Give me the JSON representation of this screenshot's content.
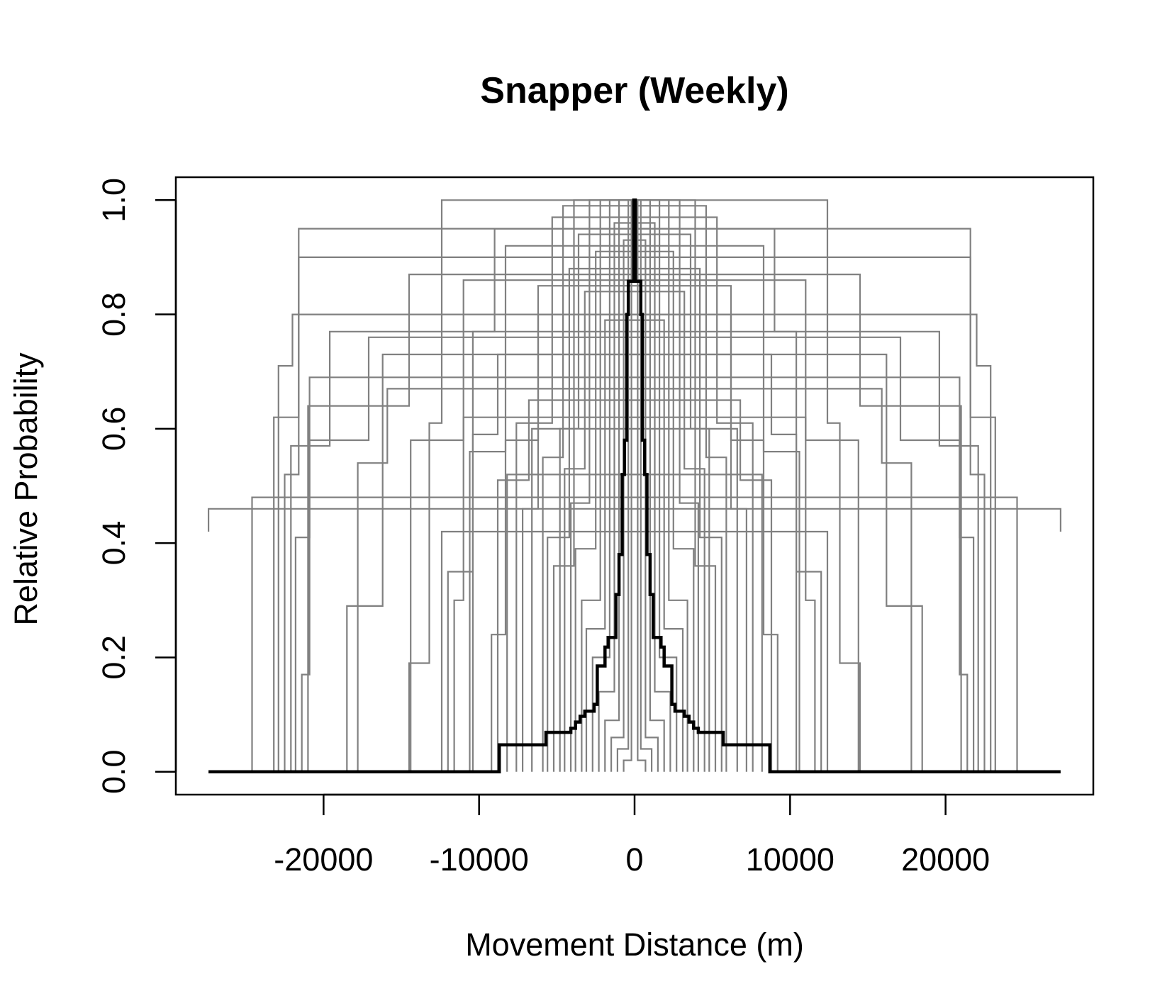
{
  "chart_data": {
    "type": "line",
    "title": "Snapper (Weekly)",
    "xlabel": "Movement Distance (m)",
    "ylabel": "Relative Probability",
    "xlim": [
      -29500,
      29500
    ],
    "ylim": [
      -0.04,
      1.04
    ],
    "x_ticks": [
      -20000,
      -10000,
      0,
      10000,
      20000
    ],
    "x_tick_labels": [
      "-20000",
      "-10000",
      "0",
      "10000",
      "20000"
    ],
    "y_ticks": [
      0.0,
      0.2,
      0.4,
      0.6,
      0.8,
      1.0
    ],
    "y_tick_labels": [
      "0.0",
      "0.2",
      "0.4",
      "0.6",
      "0.8",
      "1.0"
    ],
    "grid": false,
    "legend": "none",
    "colors": {
      "individual": "#808080",
      "mean": "#000000"
    },
    "individual_curves": [
      {
        "half_width": 27400,
        "peak": 0.46,
        "steps": [
          [
            27400,
            0.42
          ],
          [
            27400,
            0.46
          ]
        ]
      },
      {
        "half_width": 24600,
        "peak": 0.48,
        "steps": [
          [
            24600,
            0.0
          ],
          [
            24600,
            0.48
          ]
        ]
      },
      {
        "half_width": 23200,
        "peak": 0.95,
        "steps": [
          [
            23200,
            0.0
          ],
          [
            23200,
            0.62
          ],
          [
            21600,
            0.95
          ]
        ]
      },
      {
        "half_width": 22900,
        "peak": 0.8,
        "steps": [
          [
            22900,
            0.0
          ],
          [
            22900,
            0.71
          ],
          [
            22000,
            0.8
          ]
        ]
      },
      {
        "half_width": 22500,
        "peak": 0.9,
        "steps": [
          [
            22500,
            0.0
          ],
          [
            22500,
            0.52
          ],
          [
            21600,
            0.9
          ]
        ]
      },
      {
        "half_width": 22100,
        "peak": 0.77,
        "steps": [
          [
            22100,
            0.0
          ],
          [
            22100,
            0.57
          ],
          [
            19600,
            0.77
          ]
        ]
      },
      {
        "half_width": 21800,
        "peak": 0.69,
        "steps": [
          [
            21800,
            0.0
          ],
          [
            21800,
            0.41
          ],
          [
            20900,
            0.69
          ]
        ]
      },
      {
        "half_width": 21400,
        "peak": 0.76,
        "steps": [
          [
            21400,
            0.0
          ],
          [
            21400,
            0.17
          ],
          [
            20900,
            0.58
          ],
          [
            17100,
            0.76
          ]
        ]
      },
      {
        "half_width": 21000,
        "peak": 0.87,
        "steps": [
          [
            21000,
            0.0
          ],
          [
            21000,
            0.64
          ],
          [
            14500,
            0.87
          ]
        ]
      },
      {
        "half_width": 18500,
        "peak": 0.73,
        "steps": [
          [
            18500,
            0.0
          ],
          [
            18500,
            0.29
          ],
          [
            16200,
            0.73
          ]
        ]
      },
      {
        "half_width": 17800,
        "peak": 0.67,
        "steps": [
          [
            17800,
            0.0
          ],
          [
            17800,
            0.54
          ],
          [
            15900,
            0.67
          ]
        ]
      },
      {
        "half_width": 14500,
        "peak": 1.0,
        "steps": [
          [
            14500,
            0.0
          ],
          [
            14500,
            0.19
          ],
          [
            13200,
            0.61
          ],
          [
            12400,
            1.0
          ]
        ]
      },
      {
        "half_width": 14400,
        "peak": 0.86,
        "steps": [
          [
            14400,
            0.0
          ],
          [
            14400,
            0.58
          ],
          [
            11000,
            0.86
          ]
        ]
      },
      {
        "half_width": 12400,
        "peak": 0.42,
        "steps": [
          [
            12400,
            0.0
          ],
          [
            12400,
            0.42
          ]
        ]
      },
      {
        "half_width": 12000,
        "peak": 0.95,
        "steps": [
          [
            12000,
            0.0
          ],
          [
            12000,
            0.35
          ],
          [
            10400,
            0.77
          ],
          [
            9000,
            0.95
          ]
        ]
      },
      {
        "half_width": 11600,
        "peak": 0.62,
        "steps": [
          [
            11600,
            0.0
          ],
          [
            11600,
            0.3
          ],
          [
            11000,
            0.62
          ]
        ]
      },
      {
        "half_width": 10600,
        "peak": 0.92,
        "steps": [
          [
            10600,
            0.0
          ],
          [
            10600,
            0.56
          ],
          [
            8300,
            0.92
          ]
        ]
      },
      {
        "half_width": 10400,
        "peak": 0.73,
        "steps": [
          [
            10400,
            0.0
          ],
          [
            10400,
            0.59
          ],
          [
            8800,
            0.73
          ]
        ]
      },
      {
        "half_width": 9200,
        "peak": 0.85,
        "steps": [
          [
            9200,
            0.0
          ],
          [
            9200,
            0.24
          ],
          [
            8300,
            0.58
          ],
          [
            6200,
            0.85
          ]
        ]
      },
      {
        "half_width": 8800,
        "peak": 0.65,
        "steps": [
          [
            8800,
            0.0
          ],
          [
            8800,
            0.51
          ],
          [
            6800,
            0.65
          ]
        ]
      },
      {
        "half_width": 8200,
        "peak": 0.52,
        "steps": [
          [
            8200,
            0.0
          ],
          [
            8200,
            0.52
          ]
        ]
      },
      {
        "half_width": 7600,
        "peak": 0.97,
        "steps": [
          [
            7600,
            0.0
          ],
          [
            7600,
            0.61
          ],
          [
            5300,
            0.97
          ]
        ]
      },
      {
        "half_width": 7200,
        "peak": 0.8,
        "steps": [
          [
            7200,
            0.0
          ],
          [
            7200,
            0.46
          ],
          [
            6200,
            0.8
          ]
        ]
      },
      {
        "half_width": 6600,
        "peak": 0.6,
        "steps": [
          [
            6600,
            0.0
          ],
          [
            6600,
            0.6
          ]
        ]
      },
      {
        "half_width": 5900,
        "peak": 0.99,
        "steps": [
          [
            5900,
            0.0
          ],
          [
            5900,
            0.55
          ],
          [
            4600,
            0.99
          ]
        ]
      },
      {
        "half_width": 5600,
        "peak": 0.88,
        "steps": [
          [
            5600,
            0.0
          ],
          [
            5600,
            0.41
          ],
          [
            4200,
            0.88
          ]
        ]
      },
      {
        "half_width": 5200,
        "peak": 1.0,
        "steps": [
          [
            5200,
            0.0
          ],
          [
            5200,
            0.36
          ],
          [
            3900,
            1.0
          ]
        ]
      },
      {
        "half_width": 4800,
        "peak": 0.94,
        "steps": [
          [
            4800,
            0.0
          ],
          [
            4800,
            0.6
          ],
          [
            3600,
            0.94
          ]
        ]
      },
      {
        "half_width": 4500,
        "peak": 0.84,
        "steps": [
          [
            4500,
            0.0
          ],
          [
            4500,
            0.53
          ],
          [
            3200,
            0.84
          ]
        ]
      },
      {
        "half_width": 4100,
        "peak": 1.0,
        "steps": [
          [
            4100,
            0.0
          ],
          [
            4100,
            0.47
          ],
          [
            2900,
            1.0
          ]
        ]
      },
      {
        "half_width": 3800,
        "peak": 0.91,
        "steps": [
          [
            3800,
            0.0
          ],
          [
            3800,
            0.39
          ],
          [
            2500,
            0.91
          ]
        ]
      },
      {
        "half_width": 3400,
        "peak": 1.0,
        "steps": [
          [
            3400,
            0.0
          ],
          [
            3400,
            0.3
          ],
          [
            2200,
            1.0
          ]
        ]
      },
      {
        "half_width": 3100,
        "peak": 0.79,
        "steps": [
          [
            3100,
            0.0
          ],
          [
            3100,
            0.25
          ],
          [
            1900,
            0.79
          ]
        ]
      },
      {
        "half_width": 2700,
        "peak": 1.0,
        "steps": [
          [
            2700,
            0.0
          ],
          [
            2700,
            0.2
          ],
          [
            1600,
            1.0
          ]
        ]
      },
      {
        "half_width": 2300,
        "peak": 0.96,
        "steps": [
          [
            2300,
            0.0
          ],
          [
            2300,
            0.14
          ],
          [
            1300,
            0.96
          ]
        ]
      },
      {
        "half_width": 1900,
        "peak": 1.0,
        "steps": [
          [
            1900,
            0.0
          ],
          [
            1900,
            0.09
          ],
          [
            1000,
            1.0
          ]
        ]
      },
      {
        "half_width": 1500,
        "peak": 0.93,
        "steps": [
          [
            1500,
            0.0
          ],
          [
            1500,
            0.06
          ],
          [
            700,
            0.93
          ]
        ]
      },
      {
        "half_width": 1100,
        "peak": 1.0,
        "steps": [
          [
            1100,
            0.0
          ],
          [
            1100,
            0.04
          ],
          [
            400,
            1.0
          ]
        ]
      },
      {
        "half_width": 700,
        "peak": 1.0,
        "steps": [
          [
            700,
            0.0
          ],
          [
            700,
            0.02
          ],
          [
            200,
            1.0
          ]
        ]
      }
    ],
    "series": [
      {
        "values": [
          [
            -27400,
            0.0
          ],
          [
            -8700,
            0.0
          ],
          [
            -8700,
            0.047
          ],
          [
            -5700,
            0.047
          ],
          [
            -5700,
            0.069
          ],
          [
            -4100,
            0.069
          ],
          [
            -4100,
            0.076
          ],
          [
            -3800,
            0.076
          ],
          [
            -3800,
            0.087
          ],
          [
            -3500,
            0.087
          ],
          [
            -3500,
            0.097
          ],
          [
            -3200,
            0.097
          ],
          [
            -3200,
            0.106
          ],
          [
            -2600,
            0.106
          ],
          [
            -2600,
            0.118
          ],
          [
            -2400,
            0.118
          ],
          [
            -2400,
            0.185
          ],
          [
            -1900,
            0.185
          ],
          [
            -1900,
            0.218
          ],
          [
            -1700,
            0.218
          ],
          [
            -1700,
            0.235
          ],
          [
            -1200,
            0.235
          ],
          [
            -1200,
            0.31
          ],
          [
            -1000,
            0.31
          ],
          [
            -1000,
            0.38
          ],
          [
            -800,
            0.38
          ],
          [
            -800,
            0.52
          ],
          [
            -650,
            0.52
          ],
          [
            -650,
            0.58
          ],
          [
            -500,
            0.58
          ],
          [
            -500,
            0.8
          ],
          [
            -400,
            0.8
          ],
          [
            -400,
            0.858
          ],
          [
            -50,
            0.858
          ],
          [
            -50,
            1.0
          ],
          [
            50,
            1.0
          ],
          [
            50,
            0.858
          ],
          [
            400,
            0.858
          ],
          [
            400,
            0.8
          ],
          [
            500,
            0.8
          ],
          [
            500,
            0.58
          ],
          [
            650,
            0.58
          ],
          [
            650,
            0.52
          ],
          [
            800,
            0.52
          ],
          [
            800,
            0.38
          ],
          [
            1000,
            0.38
          ],
          [
            1000,
            0.31
          ],
          [
            1200,
            0.31
          ],
          [
            1200,
            0.235
          ],
          [
            1700,
            0.235
          ],
          [
            1700,
            0.218
          ],
          [
            1900,
            0.218
          ],
          [
            1900,
            0.185
          ],
          [
            2400,
            0.185
          ],
          [
            2400,
            0.118
          ],
          [
            2600,
            0.118
          ],
          [
            2600,
            0.106
          ],
          [
            3200,
            0.106
          ],
          [
            3200,
            0.097
          ],
          [
            3500,
            0.097
          ],
          [
            3500,
            0.087
          ],
          [
            3800,
            0.087
          ],
          [
            3800,
            0.076
          ],
          [
            4100,
            0.076
          ],
          [
            4100,
            0.069
          ],
          [
            5700,
            0.069
          ],
          [
            5700,
            0.047
          ],
          [
            8700,
            0.047
          ],
          [
            8700,
            0.0
          ],
          [
            27400,
            0.0
          ]
        ]
      }
    ]
  }
}
